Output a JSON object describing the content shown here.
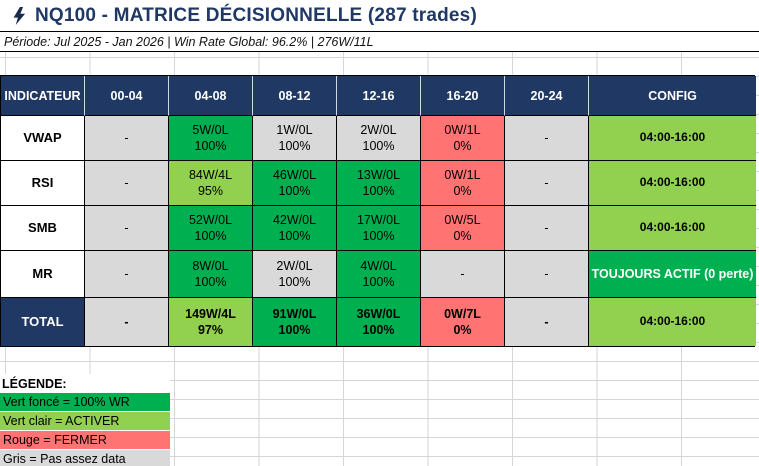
{
  "title": {
    "icon": "lightning-bolt",
    "text": "NQ100 - MATRICE DÉCISIONNELLE (287 trades)"
  },
  "subtitle": "Période: Jul 2025 - Jan 2026 | Win Rate Global: 96.2% | 276W/11L",
  "colors": {
    "header_bg": "#1F3864",
    "dark_green": "#00B050",
    "light_green": "#92D050",
    "red": "#FF7373",
    "grey": "#D9D9D9"
  },
  "matrix": {
    "columns": [
      "INDICATEUR",
      "00-04",
      "04-08",
      "08-12",
      "12-16",
      "16-20",
      "20-24",
      "CONFIG"
    ],
    "rows": [
      {
        "indicator": "VWAP",
        "total": false,
        "cells": [
          {
            "wl": "-",
            "pct": "",
            "color": "grey"
          },
          {
            "wl": "5W/0L",
            "pct": "100%",
            "color": "dark_green"
          },
          {
            "wl": "1W/0L",
            "pct": "100%",
            "color": "grey"
          },
          {
            "wl": "2W/0L",
            "pct": "100%",
            "color": "grey"
          },
          {
            "wl": "0W/1L",
            "pct": "0%",
            "color": "red"
          },
          {
            "wl": "-",
            "pct": "",
            "color": "grey"
          }
        ],
        "config": {
          "text": "04:00-16:00",
          "color": "light_green",
          "white_text": false
        }
      },
      {
        "indicator": "RSI",
        "total": false,
        "cells": [
          {
            "wl": "-",
            "pct": "",
            "color": "grey"
          },
          {
            "wl": "84W/4L",
            "pct": "95%",
            "color": "light_green"
          },
          {
            "wl": "46W/0L",
            "pct": "100%",
            "color": "dark_green"
          },
          {
            "wl": "13W/0L",
            "pct": "100%",
            "color": "dark_green"
          },
          {
            "wl": "0W/1L",
            "pct": "0%",
            "color": "red"
          },
          {
            "wl": "-",
            "pct": "",
            "color": "grey"
          }
        ],
        "config": {
          "text": "04:00-16:00",
          "color": "light_green",
          "white_text": false
        }
      },
      {
        "indicator": "SMB",
        "total": false,
        "cells": [
          {
            "wl": "-",
            "pct": "",
            "color": "grey"
          },
          {
            "wl": "52W/0L",
            "pct": "100%",
            "color": "dark_green"
          },
          {
            "wl": "42W/0L",
            "pct": "100%",
            "color": "dark_green"
          },
          {
            "wl": "17W/0L",
            "pct": "100%",
            "color": "dark_green"
          },
          {
            "wl": "0W/5L",
            "pct": "0%",
            "color": "red"
          },
          {
            "wl": "-",
            "pct": "",
            "color": "grey"
          }
        ],
        "config": {
          "text": "04:00-16:00",
          "color": "light_green",
          "white_text": false
        }
      },
      {
        "indicator": "MR",
        "total": false,
        "cells": [
          {
            "wl": "-",
            "pct": "",
            "color": "grey"
          },
          {
            "wl": "8W/0L",
            "pct": "100%",
            "color": "dark_green"
          },
          {
            "wl": "2W/0L",
            "pct": "100%",
            "color": "grey"
          },
          {
            "wl": "4W/0L",
            "pct": "100%",
            "color": "dark_green"
          },
          {
            "wl": "-",
            "pct": "",
            "color": "grey"
          },
          {
            "wl": "-",
            "pct": "",
            "color": "grey"
          }
        ],
        "config": {
          "text": "TOUJOURS ACTIF (0 perte)",
          "color": "dark_green",
          "white_text": true
        }
      },
      {
        "indicator": "TOTAL",
        "total": true,
        "cells": [
          {
            "wl": "-",
            "pct": "",
            "color": "grey"
          },
          {
            "wl": "149W/4L",
            "pct": "97%",
            "color": "light_green"
          },
          {
            "wl": "91W/0L",
            "pct": "100%",
            "color": "dark_green"
          },
          {
            "wl": "36W/0L",
            "pct": "100%",
            "color": "dark_green"
          },
          {
            "wl": "0W/7L",
            "pct": "0%",
            "color": "red"
          },
          {
            "wl": "-",
            "pct": "",
            "color": "grey"
          }
        ],
        "config": {
          "text": "04:00-16:00",
          "color": "light_green",
          "white_text": false
        }
      }
    ]
  },
  "legend": {
    "title": "LÉGENDE:",
    "items": [
      {
        "label": "Vert foncé = 100% WR",
        "color": "dark_green"
      },
      {
        "label": "Vert clair = ACTIVER",
        "color": "light_green"
      },
      {
        "label": "Rouge = FERMER",
        "color": "red"
      },
      {
        "label": "Gris = Pas assez data",
        "color": "grey"
      }
    ]
  }
}
